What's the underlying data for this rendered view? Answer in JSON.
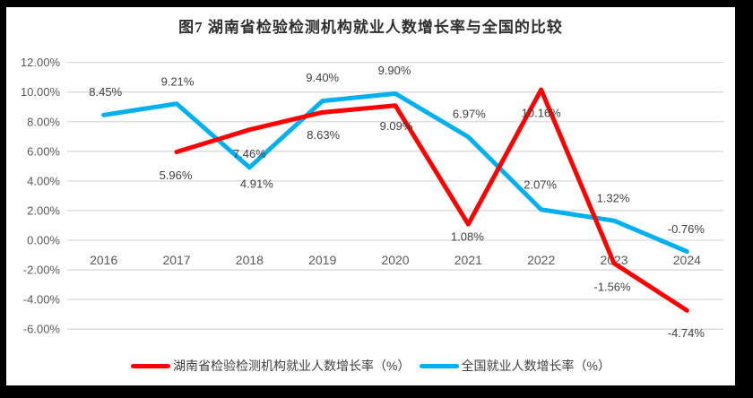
{
  "page": {
    "background_color": "#000000",
    "card_color": "#ffffff"
  },
  "chart_data": {
    "type": "line",
    "title": "图7 湖南省检验检测机构就业人数增长率与全国的比较",
    "categories": [
      "2016",
      "2017",
      "2018",
      "2019",
      "2020",
      "2021",
      "2022",
      "2023",
      "2024"
    ],
    "series": [
      {
        "name": "湖南省检验检测机构就业人数增长率（%）",
        "color": "#ff0000",
        "values": [
          null,
          5.96,
          7.46,
          8.63,
          9.09,
          1.08,
          10.16,
          -1.56,
          -4.74
        ],
        "point_labels": [
          null,
          "5.96%",
          "7.46%",
          "8.63%",
          "9.09%",
          "1.08%",
          "10.16%",
          "-1.56%",
          "-4.74%"
        ]
      },
      {
        "name": "全国就业人数增长率（%）",
        "color": "#00b0f0",
        "values": [
          8.45,
          9.21,
          4.91,
          9.4,
          9.9,
          6.97,
          2.07,
          1.32,
          -0.76
        ],
        "point_labels": [
          "8.45%",
          "9.21%",
          "4.91%",
          "9.40%",
          "9.90%",
          "6.97%",
          "2.07%",
          "1.32%",
          "-0.76%"
        ]
      }
    ],
    "xlabel": "",
    "ylabel": "",
    "ylim": [
      -6,
      12
    ],
    "ytick_step": 2,
    "ytick_format": "0.00%",
    "grid": true,
    "gridline_color": "#d9d9d9",
    "axis_text_color": "#595959",
    "data_label_color": "#404040",
    "legend_position": "bottom"
  }
}
